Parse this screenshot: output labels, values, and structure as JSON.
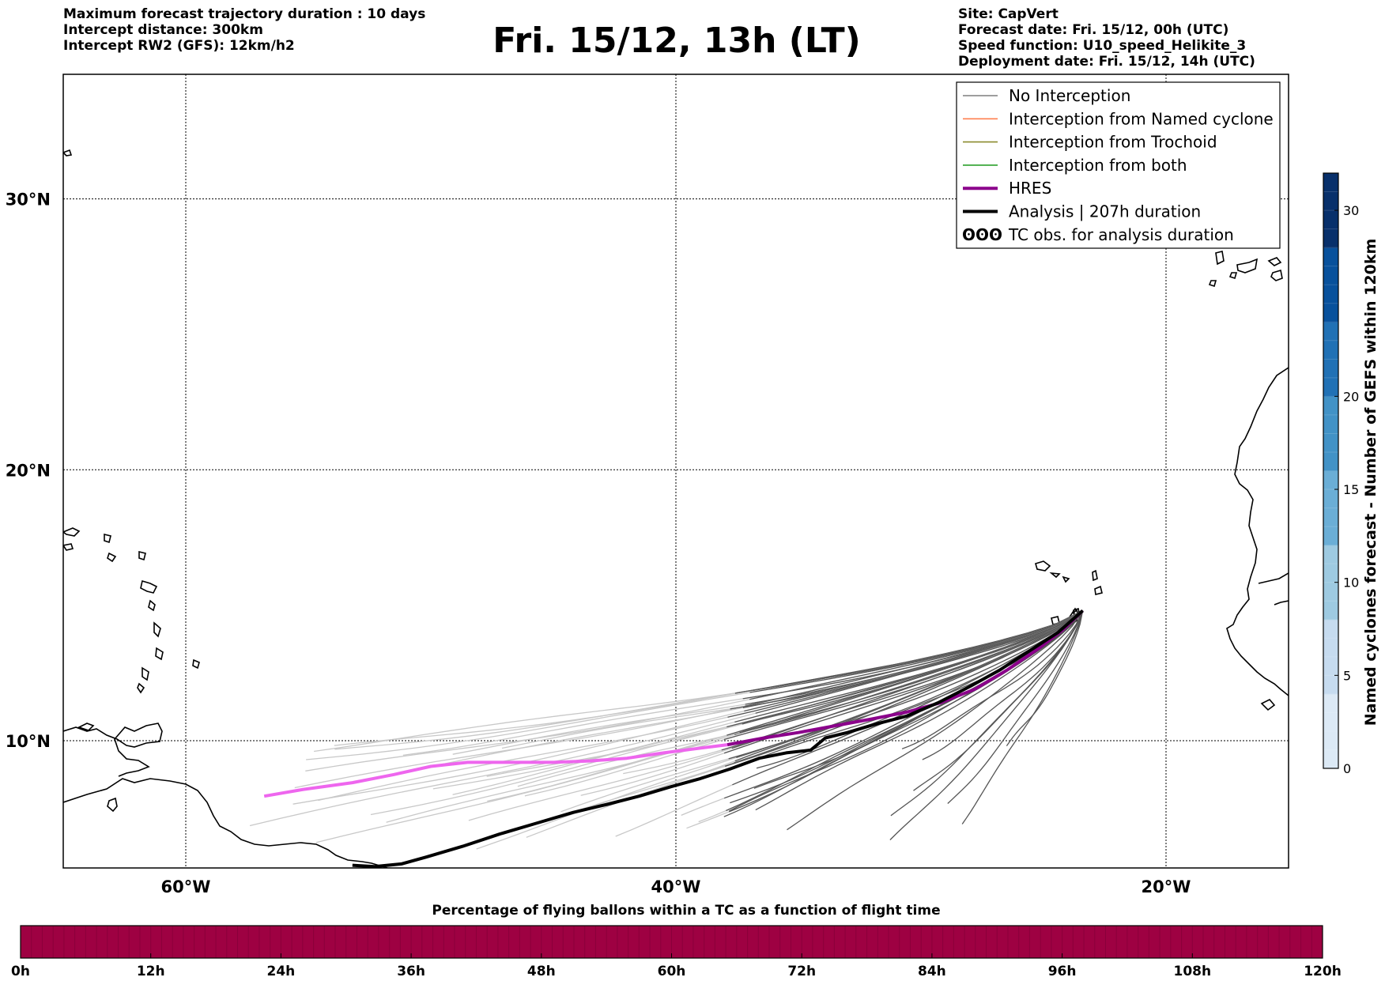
{
  "header": {
    "left_lines": [
      "Maximum forecast trajectory duration : 10 days",
      "Intercept distance: 300km",
      "Intercept RW2 (GFS):  12km/h2"
    ],
    "title": "Fri. 15/12, 13h (LT)",
    "right_lines": [
      "Site: CapVert",
      "Forecast date: Fri. 15/12, 00h (UTC)",
      "Speed function: U10_speed_Helikite_3",
      "Deployment date: Fri. 15/12, 14h (UTC)"
    ]
  },
  "map": {
    "lon_range": [
      -65,
      -15
    ],
    "lat_range": [
      5.3,
      34.6
    ],
    "meridians": [
      -60,
      -40,
      -20
    ],
    "parallels": [
      10,
      20,
      30
    ],
    "lat_labels": [
      "10°N",
      "20°N",
      "30°N"
    ],
    "lon_labels": [
      "60°W",
      "40°W",
      "20°W"
    ],
    "launch_site": {
      "lon": -23.4,
      "lat": 14.8
    }
  },
  "legend": {
    "items": [
      {
        "label": "No Interception",
        "color": "#7f7f7f",
        "style": "thin"
      },
      {
        "label": "Interception from Named cyclone",
        "color": "#ff7f50",
        "style": "thin"
      },
      {
        "label": "Interception from Trochoid",
        "color": "#8b8b2e",
        "style": "thin"
      },
      {
        "label": "Interception from both",
        "color": "#2ca02c",
        "style": "thin"
      },
      {
        "label": "HRES",
        "color": "#8b008b",
        "style": "thick"
      },
      {
        "label": "Analysis | 207h duration",
        "color": "#000000",
        "style": "thick"
      },
      {
        "label": "TC obs. for analysis duration",
        "color": "#000000",
        "style": "symbol",
        "symbol": "ʘʘʘ"
      }
    ]
  },
  "colorbar_right": {
    "title": "Named cyclones forecast - Number of GEFS within 120km",
    "ticks": [
      "0",
      "5",
      "10",
      "15",
      "20",
      "30"
    ],
    "tick_values": [
      0,
      5,
      10,
      15,
      20,
      30
    ],
    "max": 32,
    "colors": [
      "#dce9f5",
      "#c6dbef",
      "#9ecae1",
      "#6baed6",
      "#4292c6",
      "#2171b5",
      "#08519c",
      "#08306b"
    ]
  },
  "colorbar_bottom": {
    "title": "Percentage of flying ballons within a TC as a function of flight time",
    "ticks": [
      "0h",
      "12h",
      "24h",
      "36h",
      "48h",
      "60h",
      "72h",
      "84h",
      "96h",
      "108h",
      "120h"
    ],
    "fill_color": "#9e0142"
  },
  "chart_data": {
    "type": "line",
    "xlabel": "",
    "ylabel": "",
    "x_unit": "degrees longitude",
    "y_unit": "degrees latitude",
    "xlim": [
      -65,
      -15
    ],
    "ylim": [
      5.3,
      34.6
    ],
    "series": [
      {
        "name": "HRES",
        "color": "#8b008b",
        "points": [
          [
            -23.4,
            14.8
          ],
          [
            -24.2,
            14.1
          ],
          [
            -25.2,
            13.4
          ],
          [
            -26.5,
            12.6
          ],
          [
            -27.8,
            11.9
          ],
          [
            -29.2,
            11.4
          ],
          [
            -30.6,
            11.05
          ],
          [
            -32,
            10.8
          ],
          [
            -33.5,
            10.55
          ],
          [
            -35,
            10.3
          ],
          [
            -36.4,
            10.1
          ],
          [
            -37.9,
            9.85
          ],
          [
            -39.2,
            9.7
          ],
          [
            -40.5,
            9.55
          ],
          [
            -42,
            9.35
          ],
          [
            -43.5,
            9.25
          ],
          [
            -45,
            9.2
          ],
          [
            -46.8,
            9.2
          ],
          [
            -48.5,
            9.2
          ],
          [
            -50,
            9.05
          ],
          [
            -51.5,
            8.75
          ],
          [
            -53.2,
            8.45
          ],
          [
            -55.2,
            8.2
          ],
          [
            -56.8,
            7.95
          ]
        ],
        "faded_west_of": -38.5,
        "faded_color": "#ee66ee"
      },
      {
        "name": "Analysis | 207h duration",
        "color": "#000000",
        "points": [
          [
            -23.4,
            14.8
          ],
          [
            -24.4,
            14
          ],
          [
            -25.6,
            13.3
          ],
          [
            -26.8,
            12.6
          ],
          [
            -28,
            12
          ],
          [
            -29.3,
            11.4
          ],
          [
            -30.6,
            10.9
          ],
          [
            -31.9,
            10.6
          ],
          [
            -33,
            10.3
          ],
          [
            -33.9,
            10.1
          ],
          [
            -34.5,
            9.65
          ],
          [
            -35.5,
            9.55
          ],
          [
            -36.6,
            9.35
          ],
          [
            -37.8,
            8.95
          ],
          [
            -39,
            8.6
          ],
          [
            -40.2,
            8.3
          ],
          [
            -41.5,
            7.95
          ],
          [
            -42.8,
            7.65
          ],
          [
            -44.2,
            7.35
          ],
          [
            -45.7,
            6.95
          ],
          [
            -47.2,
            6.55
          ],
          [
            -48.7,
            6.1
          ],
          [
            -50.2,
            5.7
          ],
          [
            -51.2,
            5.45
          ],
          [
            -52.3,
            5.35
          ],
          [
            -53.2,
            5.4
          ]
        ]
      }
    ],
    "ensemble_track_count": 50,
    "ensemble_colors": {
      "near": "#555555",
      "far": "#c8c8c8"
    }
  }
}
